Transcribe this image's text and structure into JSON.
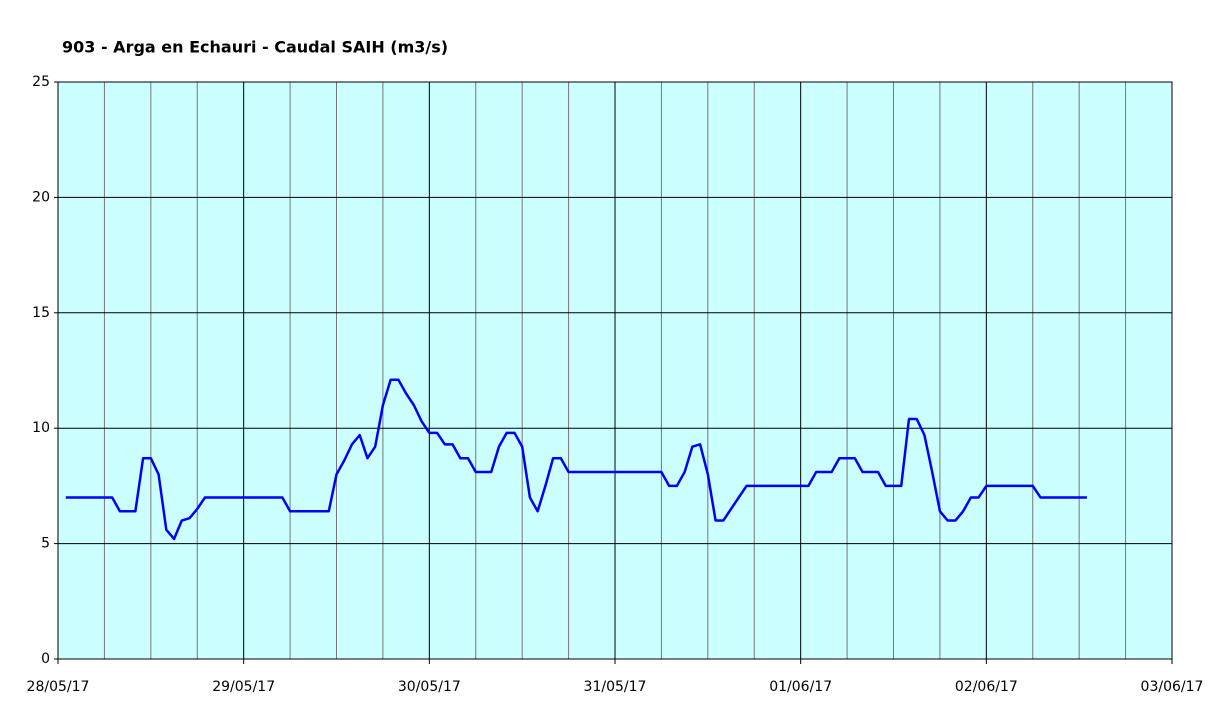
{
  "chart_data": {
    "type": "line",
    "title": "903 - Arga en Echauri - Caudal SAIH (m3/s)",
    "x": [
      1,
      7,
      8,
      10,
      11,
      12,
      13,
      14,
      15,
      16,
      17,
      18,
      19,
      29,
      30,
      35,
      36,
      37,
      38,
      39,
      40,
      41,
      42,
      43,
      44,
      45,
      46,
      47,
      48,
      49,
      50,
      51,
      52,
      53,
      54,
      56,
      57,
      58,
      59,
      60,
      61,
      62,
      63,
      64,
      65,
      66,
      78,
      79,
      80,
      81,
      82,
      83,
      84,
      85,
      86,
      87,
      88,
      89,
      97,
      98,
      100,
      101,
      103,
      104,
      106,
      107,
      109,
      110,
      111,
      112,
      113,
      114,
      115,
      116,
      117,
      118,
      119,
      120,
      126,
      127,
      133
    ],
    "series": [
      {
        "name": "Caudal",
        "color": "#0000ff",
        "values": [
          7.0,
          7.0,
          6.4,
          6.4,
          8.7,
          8.7,
          8.0,
          5.6,
          5.2,
          6.0,
          6.1,
          6.5,
          7.0,
          7.0,
          6.4,
          6.4,
          8.0,
          8.6,
          9.3,
          9.7,
          8.7,
          9.2,
          11.0,
          12.1,
          12.1,
          11.5,
          11.0,
          10.3,
          9.8,
          9.8,
          9.3,
          9.3,
          8.7,
          8.7,
          8.1,
          8.1,
          9.2,
          9.8,
          9.8,
          9.2,
          7.0,
          6.4,
          7.5,
          8.7,
          8.7,
          8.1,
          8.1,
          7.5,
          7.5,
          8.1,
          9.2,
          9.3,
          8.0,
          6.0,
          6.0,
          6.5,
          7.0,
          7.5,
          7.5,
          8.1,
          8.1,
          8.7,
          8.7,
          8.1,
          8.1,
          7.5,
          7.5,
          10.4,
          10.4,
          9.7,
          8.1,
          6.4,
          6.0,
          6.0,
          6.4,
          7.0,
          7.0,
          7.5,
          7.5,
          7.0,
          7.0
        ]
      }
    ],
    "xlim": [
      0,
      144
    ],
    "xticks": [
      {
        "value": 0,
        "label": "28/05/17"
      },
      {
        "value": 24,
        "label": "29/05/17"
      },
      {
        "value": 48,
        "label": "30/05/17"
      },
      {
        "value": 72,
        "label": "31/05/17"
      },
      {
        "value": 96,
        "label": "01/06/17"
      },
      {
        "value": 120,
        "label": "02/06/17"
      },
      {
        "value": 144,
        "label": "03/06/17"
      }
    ],
    "xminorticks": [
      6,
      12,
      18,
      30,
      36,
      42,
      54,
      60,
      66,
      78,
      84,
      90,
      102,
      108,
      114,
      126,
      132,
      138
    ],
    "ylim": [
      0,
      25
    ],
    "yticks": [
      0,
      5,
      10,
      15,
      20,
      25
    ],
    "grid": true,
    "background": "#ccffff"
  }
}
